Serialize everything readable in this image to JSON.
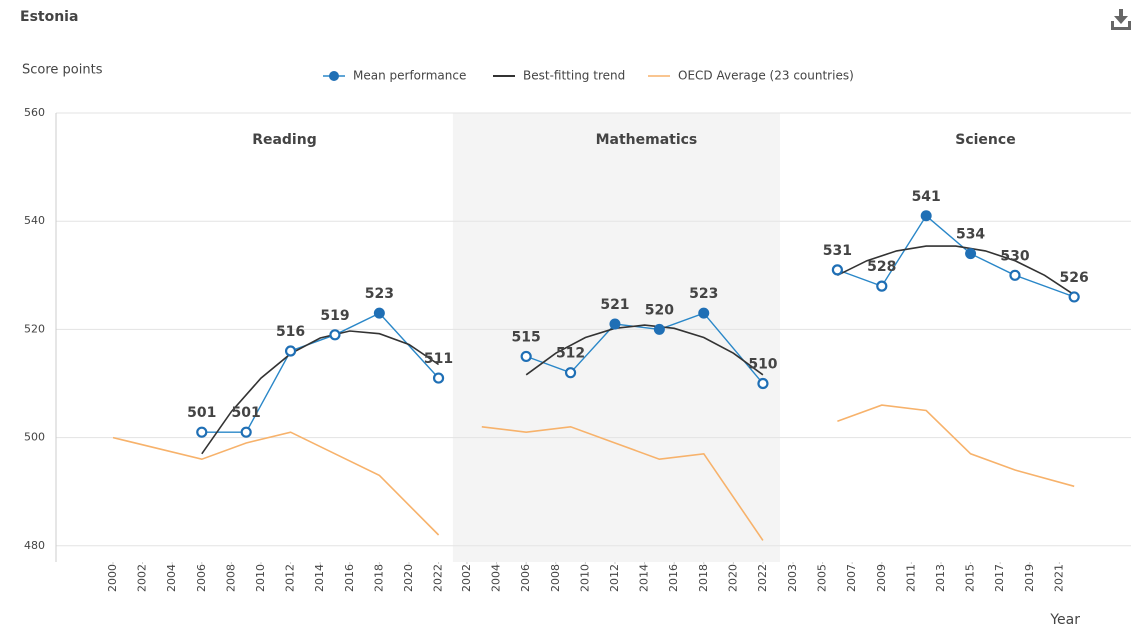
{
  "chart_data": {
    "type": "line",
    "title": "Estonia",
    "ylabel": "Score points",
    "xlabel": "Year",
    "ylim": [
      477,
      560
    ],
    "yticks": [
      480,
      500,
      520,
      540,
      560
    ],
    "grid": true,
    "legend": [
      {
        "name": "Mean performance",
        "color": "#2a87c8"
      },
      {
        "name": "Best-fitting trend",
        "color": "#333333"
      },
      {
        "name": "OECD Average (23 countries)",
        "color": "#f7b26b"
      }
    ],
    "panels": [
      {
        "title": "Reading",
        "shaded": false,
        "xlim": [
          1996.15,
          2022.97
        ],
        "xticks": [
          2000,
          2002,
          2004,
          2006,
          2008,
          2010,
          2012,
          2014,
          2016,
          2018,
          2020,
          2022
        ],
        "mean": {
          "x": [
            2006,
            2009,
            2012,
            2015,
            2018,
            2022
          ],
          "values": [
            501,
            501,
            516,
            519,
            523,
            511
          ],
          "filled": [
            false,
            false,
            false,
            false,
            true,
            false
          ]
        },
        "trend": {
          "x": [
            2006,
            2008,
            2010,
            2012,
            2014,
            2016,
            2018,
            2020,
            2022
          ],
          "values": [
            497.0,
            504.8,
            511.0,
            515.5,
            518.4,
            519.7,
            519.2,
            517.2,
            513.5
          ]
        },
        "oecd": {
          "x": [
            2000,
            2006,
            2009,
            2012,
            2015,
            2018,
            2022
          ],
          "values": [
            500,
            496,
            499,
            501,
            497,
            493,
            482
          ]
        }
      },
      {
        "title": "Mathematics",
        "shaded": true,
        "xlim": [
          2001.05,
          2023.15
        ],
        "xticks": [
          2002,
          2004,
          2006,
          2008,
          2010,
          2012,
          2014,
          2016,
          2018,
          2020,
          2022
        ],
        "mean": {
          "x": [
            2006,
            2009,
            2012,
            2015,
            2018,
            2022
          ],
          "values": [
            515,
            512,
            521,
            520,
            523,
            510
          ],
          "filled": [
            false,
            false,
            true,
            true,
            true,
            false
          ]
        },
        "trend": {
          "x": [
            2006,
            2008,
            2010,
            2012,
            2014,
            2016,
            2018,
            2020,
            2022
          ],
          "values": [
            511.6,
            515.6,
            518.5,
            520.2,
            520.8,
            520.2,
            518.5,
            515.6,
            511.6
          ]
        },
        "oecd": {
          "x": [
            2003,
            2006,
            2009,
            2012,
            2015,
            2018,
            2022
          ],
          "values": [
            502,
            501,
            502,
            499,
            496,
            497,
            481
          ]
        }
      },
      {
        "title": "Science",
        "shaded": false,
        "xlim": [
          2002.12,
          2025.84
        ],
        "xticks": [
          2003,
          2005,
          2007,
          2009,
          2011,
          2013,
          2015,
          2017,
          2019,
          2021
        ],
        "mean": {
          "x": [
            2006,
            2009,
            2012,
            2015,
            2018,
            2022
          ],
          "values": [
            531,
            528,
            541,
            534,
            530,
            526
          ],
          "filled": [
            false,
            false,
            true,
            true,
            false,
            false
          ]
        },
        "trend": {
          "x": [
            2006,
            2008,
            2010,
            2012,
            2014,
            2016,
            2018,
            2020,
            2022
          ],
          "values": [
            530.0,
            532.7,
            534.5,
            535.4,
            535.4,
            534.5,
            532.7,
            530.0,
            526.4
          ]
        },
        "oecd": {
          "x": [
            2006,
            2009,
            2012,
            2015,
            2018,
            2022
          ],
          "values": [
            503,
            506,
            505,
            497,
            494,
            491
          ]
        }
      }
    ]
  }
}
